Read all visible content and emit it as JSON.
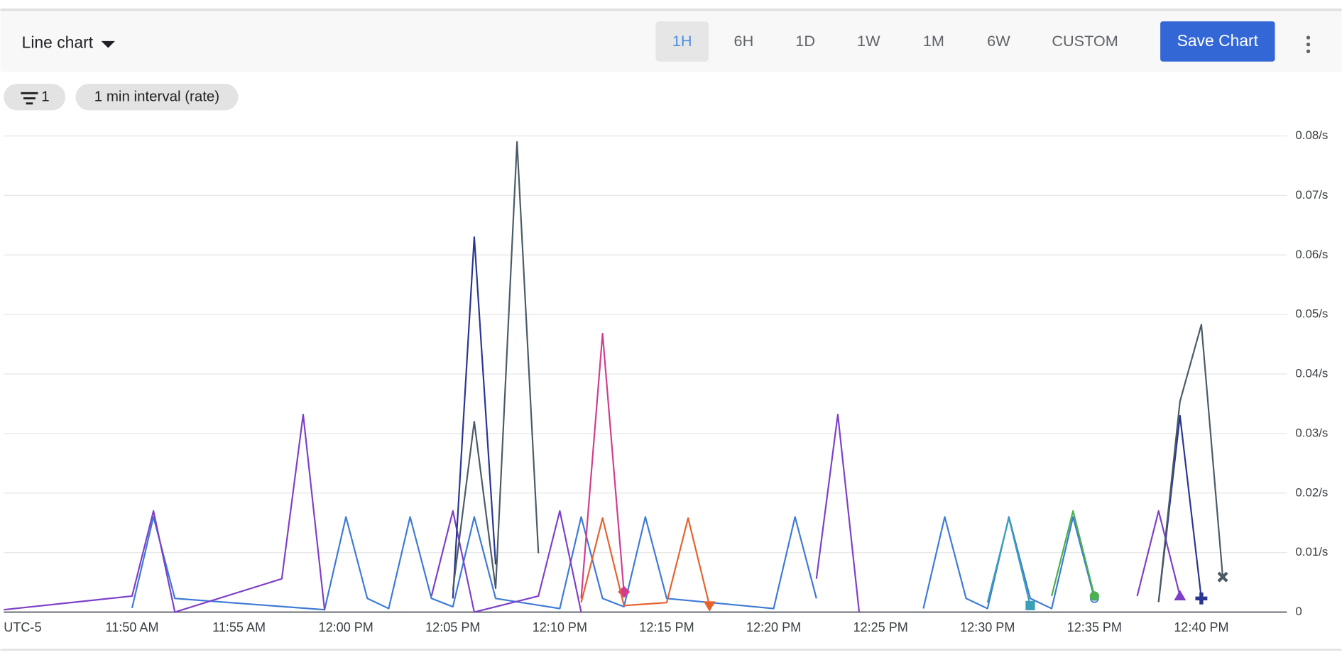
{
  "toolbar": {
    "chart_type": "Line chart",
    "ranges": [
      "1H",
      "6H",
      "1D",
      "1W",
      "1M",
      "6W",
      "CUSTOM"
    ],
    "selected": 0,
    "save": "Save Chart"
  },
  "filters": {
    "count": "1",
    "interval": "1 min interval (rate)"
  },
  "chart_data": {
    "type": "line",
    "xlabel": "UTC-5",
    "xlim": [
      "11:44",
      "12:44"
    ],
    "xticks": [
      {
        "value": "11:50",
        "label": "11:50 AM"
      },
      {
        "value": "11:55",
        "label": "11:55 AM"
      },
      {
        "value": "12:00",
        "label": "12:00 PM"
      },
      {
        "value": "12:05",
        "label": "12:05 PM"
      },
      {
        "value": "12:10",
        "label": "12:10 PM"
      },
      {
        "value": "12:15",
        "label": "12:15 PM"
      },
      {
        "value": "12:20",
        "label": "12:20 PM"
      },
      {
        "value": "12:25",
        "label": "12:25 PM"
      },
      {
        "value": "12:30",
        "label": "12:30 PM"
      },
      {
        "value": "12:35",
        "label": "12:35 PM"
      },
      {
        "value": "12:40",
        "label": "12:40 PM"
      }
    ],
    "ylim": [
      0,
      0.08
    ],
    "yticks": [
      0,
      {
        "value": 0.01,
        "label": "0.01/s"
      },
      {
        "value": 0.02,
        "label": "0.02/s"
      },
      {
        "value": 0.03,
        "label": "0.03/s"
      },
      {
        "value": 0.04,
        "label": "0.04/s"
      },
      {
        "value": 0.05,
        "label": "0.05/s"
      },
      {
        "value": 0.06,
        "label": "0.06/s"
      },
      {
        "value": 0.07,
        "label": "0.07/s"
      },
      {
        "value": 0.08,
        "label": "0.08/s"
      }
    ],
    "grid": true,
    "series": [
      {
        "color": "#3d7ad6",
        "marker": "circle-open",
        "x": [
          "11:50",
          "11:51",
          "11:52",
          "11:59",
          "12:00",
          "12:01",
          "12:02",
          "12:03",
          "12:04",
          "12:05",
          "12:06",
          "12:07",
          "12:10",
          "12:11",
          "12:12",
          "12:13",
          "12:14",
          "12:15",
          "12:20",
          "12:21",
          "12:22",
          "12:25",
          "12:27",
          "12:28",
          "12:29",
          "12:30",
          "12:31",
          "12:32",
          "12:33",
          "12:34",
          "12:35"
        ],
        "values": [
          0.0007,
          0.016,
          0.0023,
          0.0004,
          0.016,
          0.0023,
          0.0006,
          0.016,
          0.0023,
          0.0009,
          0.016,
          0.0023,
          0.0006,
          0.016,
          0.0023,
          0.0009,
          0.016,
          0.0023,
          0.0006,
          0.016,
          0.0023,
          null,
          0.0006,
          0.016,
          0.0023,
          0.0006,
          0.016,
          0.0023,
          0.0006,
          0.016,
          0.0023
        ]
      },
      {
        "color": "#7e3fc8",
        "marker": "triangle",
        "x": [
          "11:44",
          "11:50",
          "11:51",
          "11:52",
          "11:57",
          "11:58",
          "11:59",
          "12:02",
          "12:04",
          "12:05",
          "12:06",
          "12:09",
          "12:10",
          "12:11",
          "12:16",
          "12:22",
          "12:23",
          "12:24",
          "12:30",
          "12:37",
          "12:38",
          "12:39"
        ],
        "values": [
          0.0004,
          0.0027,
          0.017,
          0,
          0.0056,
          0.0332,
          0.0004,
          null,
          0.0027,
          0.017,
          0,
          0.0027,
          0.017,
          0,
          null,
          0.0056,
          0.0332,
          0,
          null,
          0.0027,
          0.017,
          0.0027
        ]
      },
      {
        "color": "#283593",
        "marker": "plus",
        "x": [
          "12:05",
          "12:06",
          "12:07",
          "12:20",
          "12:38",
          "12:39",
          "12:40"
        ],
        "values": [
          0.0023,
          0.063,
          0.008,
          null,
          0.0017,
          0.033,
          0.0023
        ]
      },
      {
        "color": "#4a5b66",
        "marker": "x",
        "x": [
          "12:05",
          "12:06",
          "12:07",
          "12:08",
          "12:09",
          "12:20",
          "12:38",
          "12:39",
          "12:40",
          "12:41"
        ],
        "values": [
          0.0037,
          0.032,
          0.004,
          0.079,
          0.0099,
          null,
          0.0017,
          0.0354,
          0.0483,
          0.0059
        ]
      },
      {
        "color": "#d13c8e",
        "marker": "diamond",
        "x": [
          "12:11",
          "12:12",
          "12:13"
        ],
        "values": [
          0.0023,
          0.0468,
          0.0034
        ]
      },
      {
        "color": "#e5612e",
        "marker": "triangle-down",
        "x": [
          "12:11",
          "12:12",
          "12:13",
          "12:15",
          "12:16",
          "12:17"
        ],
        "values": [
          0.0016,
          0.0158,
          0.0011,
          0.0016,
          0.0158,
          0.0011
        ]
      },
      {
        "color": "#3aa0b8",
        "marker": "square",
        "x": [
          "12:30",
          "12:31",
          "12:32"
        ],
        "values": [
          0.0016,
          0.0158,
          0.0011
        ]
      },
      {
        "color": "#4caf50",
        "marker": "circle",
        "x": [
          "12:33",
          "12:34",
          "12:35"
        ],
        "values": [
          0.0027,
          0.017,
          0.0027
        ]
      }
    ]
  }
}
